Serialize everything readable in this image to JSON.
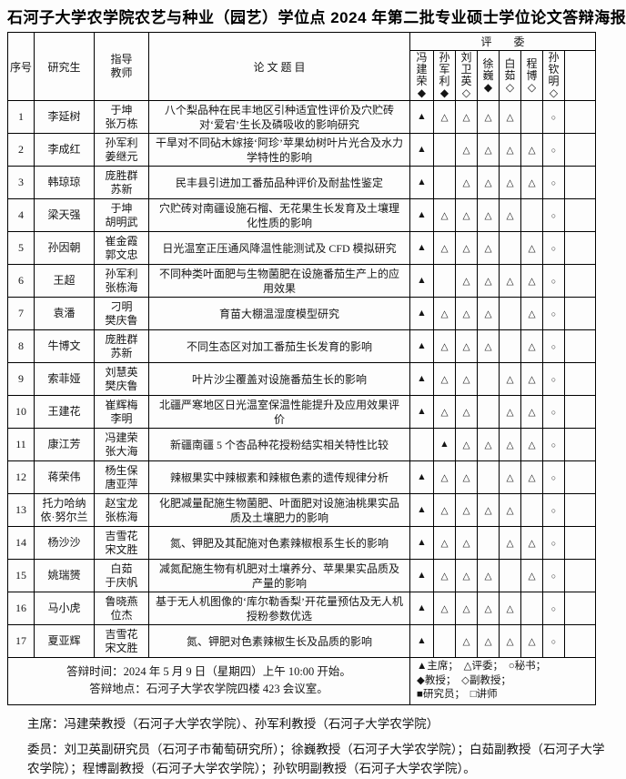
{
  "title": "石河子大学农学院农艺与种业（园艺）学位点 2024 年第二批专业硕士学位论文答辩海报",
  "table": {
    "col_headers": {
      "no": "序号",
      "student": "研究生",
      "advisor": "指导教师",
      "thesis": "论 文 题 目",
      "committee": "评　　委"
    },
    "committee": [
      {
        "name": "冯建荣",
        "rank_symbol": "◆"
      },
      {
        "name": "孙军利",
        "rank_symbol": "◆"
      },
      {
        "name": "刘卫英",
        "rank_symbol": "◇"
      },
      {
        "name": "徐巍",
        "rank_symbol": "◆"
      },
      {
        "name": "白茹",
        "rank_symbol": "◇"
      },
      {
        "name": "程博",
        "rank_symbol": "◇"
      },
      {
        "name": "孙钦明",
        "rank_symbol": "◇"
      },
      {
        "name": "",
        "rank_symbol": ""
      }
    ],
    "rows": [
      {
        "no": "1",
        "student": "李延树",
        "advisors": "于坤\n张万栋",
        "thesis": "八个梨品种在民丰地区引种适宜性评价及穴贮砖对‘爱宕’生长及磷吸收的影响研究",
        "marks": [
          "▲",
          "△",
          "△",
          "△",
          "△",
          "",
          "○",
          ""
        ]
      },
      {
        "no": "2",
        "student": "李成红",
        "advisors": "孙军利\n姜继元",
        "thesis": "干旱对不同砧木嫁接‘阿珍’苹果幼树叶片光合及水力学特性的影响",
        "marks": [
          "▲",
          "",
          "△",
          "△",
          "△",
          "△",
          "○",
          ""
        ]
      },
      {
        "no": "3",
        "student": "韩琼琼",
        "advisors": "庞胜群\n苏新",
        "thesis": "民丰县引进加工番茄品种评价及耐盐性鉴定",
        "marks": [
          "▲",
          "",
          "△",
          "△",
          "△",
          "△",
          "○",
          ""
        ]
      },
      {
        "no": "4",
        "student": "梁天强",
        "advisors": "于坤\n胡明武",
        "thesis": "穴贮砖对南疆设施石榴、无花果生长发育及土壤理化性质的影响",
        "marks": [
          "▲",
          "△",
          "△",
          "△",
          "△",
          "",
          "○",
          ""
        ]
      },
      {
        "no": "5",
        "student": "孙因朝",
        "advisors": "崔金霞\n郭文忠",
        "thesis": "日光温室正压通风降温性能测试及 CFD 模拟研究",
        "marks": [
          "▲",
          "△",
          "△",
          "△",
          "",
          "△",
          "○",
          ""
        ]
      },
      {
        "no": "6",
        "student": "王超",
        "advisors": "孙军利\n张栋海",
        "thesis": "不同种类叶面肥与生物菌肥在设施番茄生产上的应用效果",
        "marks": [
          "▲",
          "",
          "△",
          "△",
          "△",
          "△",
          "○",
          ""
        ]
      },
      {
        "no": "7",
        "student": "袁潘",
        "advisors": "刁明\n樊庆鲁",
        "thesis": "育苗大棚温湿度模型研究",
        "marks": [
          "▲",
          "△",
          "△",
          "△",
          "",
          "△",
          "○",
          ""
        ]
      },
      {
        "no": "8",
        "student": "牛博文",
        "advisors": "庞胜群\n苏新",
        "thesis": "不同生态区对加工番茄生长发育的影响",
        "marks": [
          "▲",
          "△",
          "△",
          "△",
          "",
          "△",
          "○",
          ""
        ]
      },
      {
        "no": "9",
        "student": "索菲娅",
        "advisors": "刘慧英\n樊庆鲁",
        "thesis": "叶片沙尘覆盖对设施番茄生长的影响",
        "marks": [
          "▲",
          "△",
          "△",
          "",
          "△",
          "△",
          "○",
          ""
        ]
      },
      {
        "no": "10",
        "student": "王建花",
        "advisors": "崔辉梅\n李明",
        "thesis": "北疆严寒地区日光温室保温性能提升及应用效果评价",
        "marks": [
          "▲",
          "△",
          "△",
          "",
          "△",
          "△",
          "○",
          ""
        ]
      },
      {
        "no": "11",
        "student": "康江芳",
        "advisors": "冯建荣\n张大海",
        "thesis": "新疆南疆 5 个杏品种花授粉结实相关特性比较",
        "marks": [
          "",
          "▲",
          "△",
          "△",
          "△",
          "△",
          "○",
          ""
        ]
      },
      {
        "no": "12",
        "student": "蒋荣伟",
        "advisors": "杨生保\n唐亚萍",
        "thesis": "辣椒果实中辣椒素和辣椒色素的遗传规律分析",
        "marks": [
          "▲",
          "△",
          "△",
          "",
          "△",
          "△",
          "○",
          ""
        ]
      },
      {
        "no": "13",
        "student": "托力哈纳依·努尔兰",
        "advisors": "赵宝龙\n张栋海",
        "thesis": "化肥减量配施生物菌肥、叶面肥对设施油桃果实品质及土壤肥力的影响",
        "marks": [
          "▲",
          "△",
          "△",
          "△",
          "△",
          "",
          "○",
          ""
        ]
      },
      {
        "no": "14",
        "student": "杨沙沙",
        "advisors": "吉雪花\n宋文胜",
        "thesis": "氮、钾肥及其配施对色素辣椒根系生长的影响",
        "marks": [
          "▲",
          "△",
          "△",
          "",
          "△",
          "△",
          "○",
          ""
        ]
      },
      {
        "no": "15",
        "student": "姚瑞赟",
        "advisors": "白茹\n于庆帆",
        "thesis": "减氮配施生物有机肥对土壤养分、苹果果实品质及产量的影响",
        "marks": [
          "▲",
          "△",
          "△",
          "△",
          "",
          "△",
          "○",
          ""
        ]
      },
      {
        "no": "16",
        "student": "马小虎",
        "advisors": "鲁晓燕\n位杰",
        "thesis": "基于无人机图像的‘库尔勒香梨’开花量预估及无人机授粉参数优选",
        "marks": [
          "▲",
          "△",
          "△",
          "△",
          "△",
          "",
          "○",
          ""
        ]
      },
      {
        "no": "17",
        "student": "夏亚辉",
        "advisors": "吉雪花\n宋文胜",
        "thesis": "氮、钾肥对色素辣椒生长及品质的影响",
        "marks": [
          "▲",
          "",
          "△",
          "△",
          "△",
          "△",
          "○",
          ""
        ]
      }
    ]
  },
  "footer": {
    "time": "答辩时间：2024 年 5 月 9 日（星期四）上午 10:00 开始。",
    "place": "答辩地点：石河子大学农学院四楼 423 会议室。",
    "legend_lines": [
      "▲主席；　△评委；　○秘书；",
      "◆教授；　◇副教授；",
      "■研究员；　□讲师"
    ]
  },
  "notes": {
    "chair": "主席：冯建荣教授（石河子大学农学院）、孙军利教授（石河子大学农学院）",
    "members": "委员：刘卫英副研究员（石河子市葡萄研究所）；徐巍教授（石河子大学农学院）；白茹副教授（石河子大学农学院）；程博副教授（石河子大学农学院）；孙钦明副教授（石河子大学农学院）。"
  }
}
